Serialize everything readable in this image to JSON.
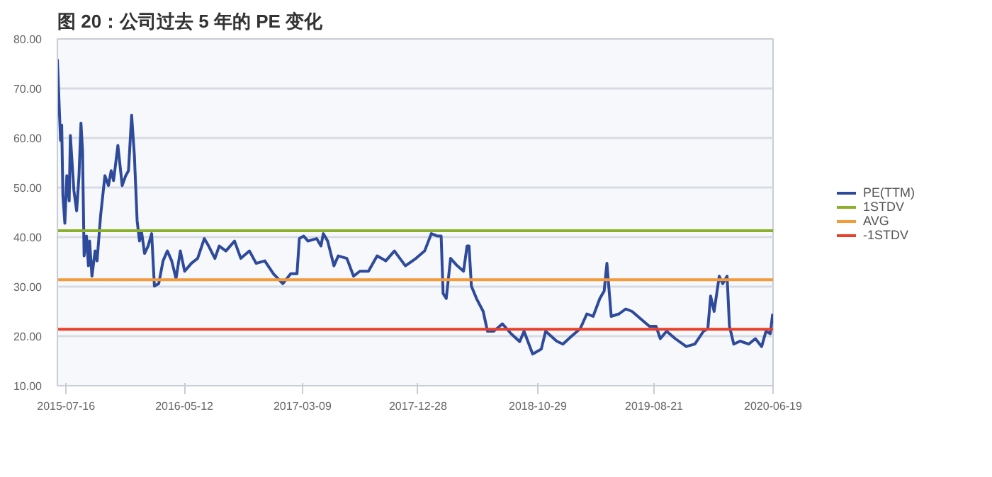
{
  "chart_data": {
    "type": "line",
    "title": "图 20：公司过去 5 年的 PE 变化",
    "xlim": [
      "2015-06-24",
      "2020-06-19"
    ],
    "xticks": [
      "2015-07-16",
      "2016-05-12",
      "2017-03-09",
      "2017-12-28",
      "2018-10-29",
      "2019-08-21",
      "2020-06-19"
    ],
    "ylim": [
      10,
      80
    ],
    "yticks": [
      {
        "value": 10,
        "label": "10.00"
      },
      {
        "value": 20,
        "label": "20.00"
      },
      {
        "value": 30,
        "label": "30.00"
      },
      {
        "value": 40,
        "label": "40.00"
      },
      {
        "value": 50,
        "label": "50.00"
      },
      {
        "value": 60,
        "label": "60.00"
      },
      {
        "value": 70,
        "label": "70.00"
      },
      {
        "value": 80,
        "label": "80.00"
      }
    ],
    "grid": "y",
    "legend": "right",
    "line_style": "solid",
    "marker": "none",
    "series": [
      {
        "name": "PE(TTM)",
        "color": "#2e4a9b",
        "x": [
          "2015-06-24",
          "2015-07-02",
          "2015-07-05",
          "2015-07-08",
          "2015-07-13",
          "2015-07-18",
          "2015-07-24",
          "2015-07-27",
          "2015-08-05",
          "2015-08-12",
          "2015-08-18",
          "2015-08-23",
          "2015-08-27",
          "2015-08-31",
          "2015-09-06",
          "2015-09-11",
          "2015-09-14",
          "2015-09-20",
          "2015-09-28",
          "2015-10-03",
          "2015-10-12",
          "2015-10-23",
          "2015-11-01",
          "2015-11-08",
          "2015-11-14",
          "2015-11-25",
          "2015-12-06",
          "2015-12-15",
          "2015-12-22",
          "2015-12-30",
          "2016-01-06",
          "2016-01-13",
          "2016-01-19",
          "2016-01-24",
          "2016-02-01",
          "2016-02-10",
          "2016-02-19",
          "2016-02-26",
          "2016-03-08",
          "2016-03-19",
          "2016-03-30",
          "2016-04-10",
          "2016-04-21",
          "2016-05-02",
          "2016-05-13",
          "2016-05-30",
          "2016-06-15",
          "2016-07-02",
          "2016-07-13",
          "2016-07-29",
          "2016-08-09",
          "2016-08-26",
          "2016-09-17",
          "2016-10-03",
          "2016-10-25",
          "2016-11-11",
          "2016-12-03",
          "2016-12-25",
          "2017-01-18",
          "2017-02-07",
          "2017-02-23",
          "2017-03-01",
          "2017-03-12",
          "2017-03-23",
          "2017-04-14",
          "2017-04-25",
          "2017-05-01",
          "2017-05-12",
          "2017-05-28",
          "2017-06-08",
          "2017-06-30",
          "2017-07-17",
          "2017-08-02",
          "2017-08-24",
          "2017-09-15",
          "2017-10-07",
          "2017-10-29",
          "2017-11-26",
          "2017-12-23",
          "2018-01-14",
          "2018-01-31",
          "2018-02-16",
          "2018-02-25",
          "2018-03-02",
          "2018-03-10",
          "2018-03-21",
          "2018-04-07",
          "2018-04-23",
          "2018-05-02",
          "2018-05-07",
          "2018-05-13",
          "2018-05-26",
          "2018-06-12",
          "2018-06-23",
          "2018-07-09",
          "2018-07-31",
          "2018-08-22",
          "2018-09-13",
          "2018-09-24",
          "2018-10-16",
          "2018-11-07",
          "2018-11-18",
          "2018-12-16",
          "2019-01-01",
          "2019-01-23",
          "2019-02-14",
          "2019-03-03",
          "2019-03-19",
          "2019-04-05",
          "2019-04-16",
          "2019-04-23",
          "2019-05-04",
          "2019-05-24",
          "2019-06-10",
          "2019-06-26",
          "2019-07-18",
          "2019-08-09",
          "2019-08-26",
          "2019-09-06",
          "2019-09-22",
          "2019-10-14",
          "2019-11-11",
          "2019-12-03",
          "2019-12-25",
          "2020-01-05",
          "2020-01-12",
          "2020-01-21",
          "2020-02-03",
          "2020-02-12",
          "2020-02-23",
          "2020-02-29",
          "2020-03-11",
          "2020-03-27",
          "2020-04-18",
          "2020-05-05",
          "2020-05-21",
          "2020-06-01",
          "2020-06-12",
          "2020-06-18"
        ],
        "values": [
          75.9,
          59.5,
          62.6,
          48.4,
          42.8,
          52.4,
          47.3,
          60.5,
          49.4,
          45.3,
          52.4,
          63,
          57.5,
          36.2,
          40.2,
          34.2,
          39.2,
          32.1,
          37.2,
          35.2,
          44.3,
          52.4,
          50.4,
          53.4,
          51.4,
          58.5,
          50.4,
          52.4,
          53.4,
          64.6,
          56.5,
          43.3,
          39.2,
          41.2,
          36.7,
          38.2,
          40.7,
          30.1,
          30.6,
          35.2,
          37.2,
          35.2,
          31.6,
          37.2,
          33.1,
          34.7,
          35.7,
          39.7,
          38.2,
          35.7,
          38.2,
          37.2,
          39.2,
          35.7,
          37.2,
          34.7,
          35.2,
          32.6,
          30.6,
          32.6,
          32.6,
          39.7,
          40.2,
          39.2,
          39.7,
          38.2,
          40.7,
          39.2,
          34.2,
          36.2,
          35.7,
          32.1,
          33.1,
          33.1,
          36.2,
          35.2,
          37.2,
          34.2,
          35.7,
          37.2,
          40.7,
          40.2,
          40.2,
          28.6,
          27.6,
          35.7,
          34.2,
          33.1,
          38.2,
          38.2,
          30.1,
          27.6,
          25.0,
          21.0,
          21.0,
          22.5,
          20.5,
          18.9,
          21.0,
          16.4,
          17.4,
          21.0,
          19.0,
          18.4,
          20.0,
          21.5,
          24.5,
          24.0,
          27.6,
          29.1,
          34.7,
          24.0,
          24.5,
          25.5,
          25.0,
          23.5,
          22.0,
          22.0,
          19.5,
          21.0,
          19.5,
          17.9,
          18.4,
          21.0,
          21.5,
          28.1,
          25.0,
          32.1,
          30.6,
          32.1,
          22.0,
          18.4,
          19.0,
          18.4,
          19.5,
          17.9,
          21.0,
          20.5,
          24.5
        ]
      },
      {
        "name": "1STDV",
        "color": "#8db02c",
        "x": [
          "2015-06-24",
          "2020-06-19"
        ],
        "values": [
          41.3,
          41.3
        ]
      },
      {
        "name": "AVG",
        "color": "#f59a3a",
        "x": [
          "2015-06-24",
          "2020-06-19"
        ],
        "values": [
          31.4,
          31.4
        ]
      },
      {
        "name": "-1STDV",
        "color": "#e8402a",
        "x": [
          "2015-06-24",
          "2020-06-19"
        ],
        "values": [
          21.4,
          21.4
        ]
      }
    ]
  }
}
